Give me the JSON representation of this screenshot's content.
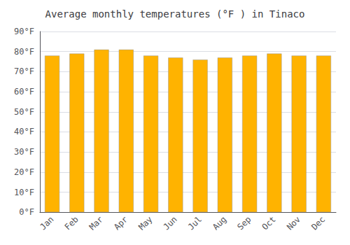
{
  "chart_data": {
    "type": "bar",
    "title": "Average monthly temperatures (°F ) in Tinaco",
    "categories": [
      "Jan",
      "Feb",
      "Mar",
      "Apr",
      "May",
      "Jun",
      "Jul",
      "Aug",
      "Sep",
      "Oct",
      "Nov",
      "Dec"
    ],
    "values": [
      78,
      79,
      81,
      81,
      78,
      77,
      76,
      77,
      78,
      79,
      78,
      78
    ],
    "color": "#FFB300",
    "ylim": [
      0,
      90
    ],
    "yticks": [
      {
        "value": 0,
        "label": "0°F"
      },
      {
        "value": 10,
        "label": "10°F"
      },
      {
        "value": 20,
        "label": "20°F"
      },
      {
        "value": 30,
        "label": "30°F"
      },
      {
        "value": 40,
        "label": "40°F"
      },
      {
        "value": 50,
        "label": "50°F"
      },
      {
        "value": 60,
        "label": "60°F"
      },
      {
        "value": 70,
        "label": "70°F"
      },
      {
        "value": 80,
        "label": "80°F"
      },
      {
        "value": 90,
        "label": "90°F"
      }
    ],
    "grid": true
  }
}
